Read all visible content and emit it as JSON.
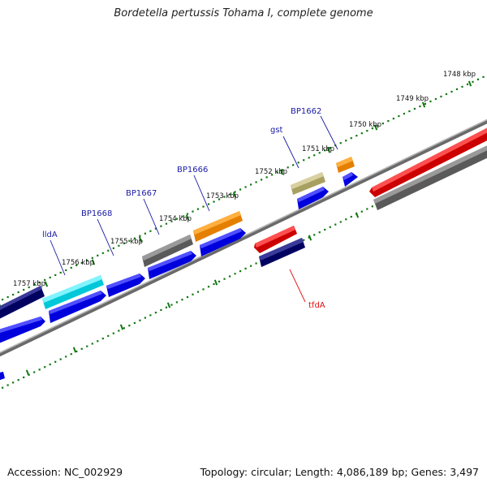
{
  "title": "Bordetella pertussis Tohama I, complete genome",
  "footer": {
    "accession": "Accession: NC_002929",
    "stats": "Topology: circular; Length: 4,086,189 bp; Genes: 3,497"
  },
  "colors": {
    "backbone": "#808080",
    "cds": "#0000ee",
    "label_blue": "#1a1aa6",
    "label_red": "#dd1111",
    "tick": "#117711"
  },
  "scale_labels": [
    "1748 kbp",
    "1749 kbp",
    "1750 kbp",
    "1751 kbp",
    "1752 kbp",
    "1753 kbp",
    "1754 kbp",
    "1755 kbp",
    "1756 kbp",
    "1757 kbp"
  ],
  "gene_labels": [
    {
      "name": "gene-label-bp1662",
      "text": "BP1662",
      "color": "blue"
    },
    {
      "name": "gene-label-gst",
      "text": "gst",
      "color": "blue"
    },
    {
      "name": "gene-label-bp1666",
      "text": "BP1666",
      "color": "blue"
    },
    {
      "name": "gene-label-bp1667",
      "text": "BP1667",
      "color": "blue"
    },
    {
      "name": "gene-label-bp1668",
      "text": "BP1668",
      "color": "blue"
    },
    {
      "name": "gene-label-llda",
      "text": "lldA",
      "color": "blue"
    },
    {
      "name": "gene-label-tfda",
      "text": "tfdA",
      "color": "red"
    }
  ]
}
